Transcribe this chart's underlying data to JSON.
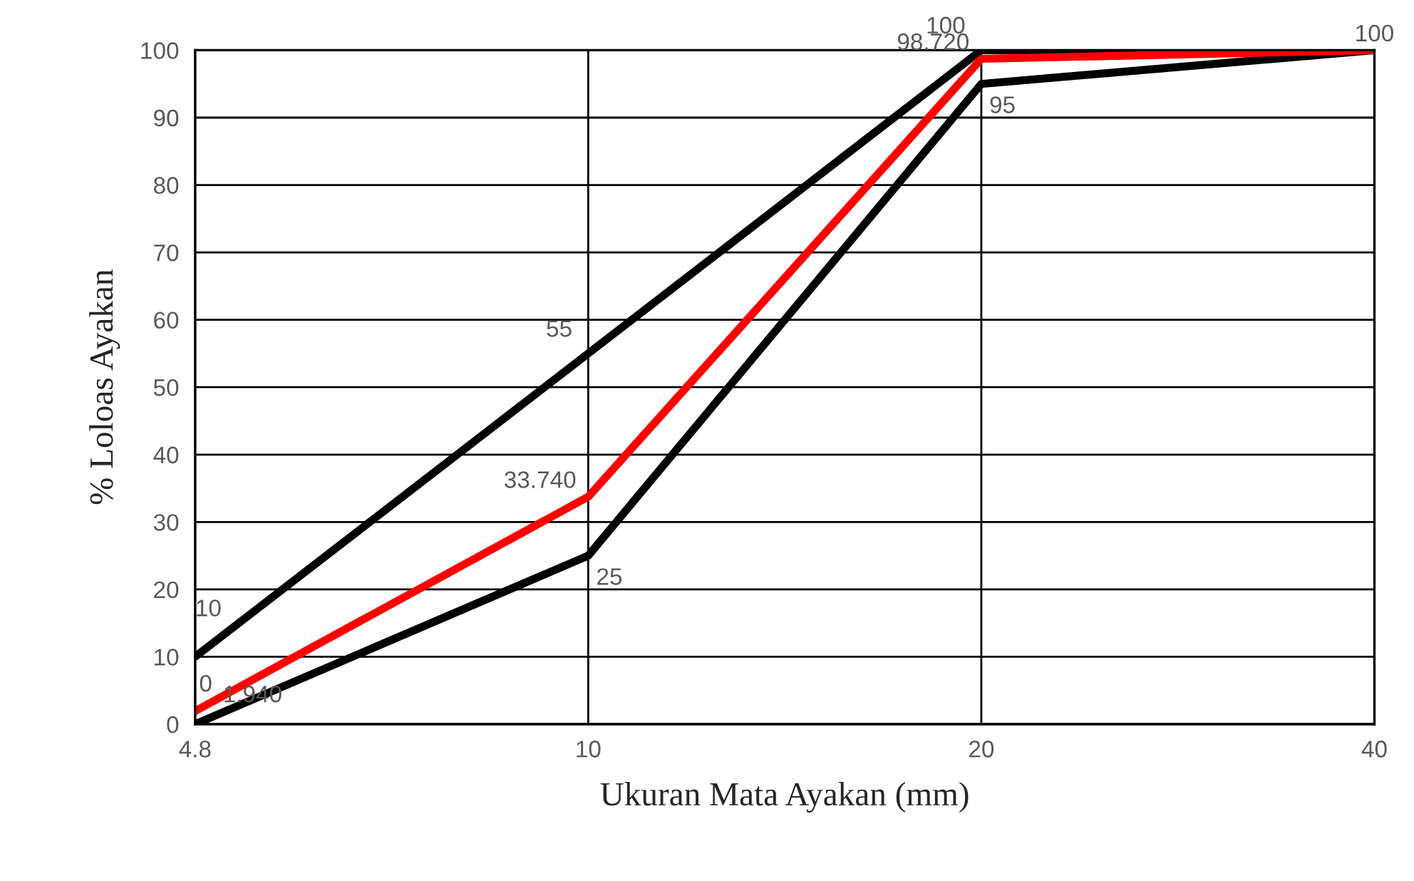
{
  "chart_data": {
    "type": "line",
    "xlabel": "Ukuran Mata Ayakan (mm)",
    "ylabel": "% Loloas Ayakan",
    "categories": [
      "4.8",
      "10",
      "20",
      "40"
    ],
    "series": [
      {
        "color": "#000000",
        "values": [
          10,
          55,
          100,
          100
        ],
        "value_labels": [
          "10",
          "55",
          "100",
          "100"
        ]
      },
      {
        "color": "#000000",
        "values": [
          0,
          25,
          95,
          100
        ],
        "value_labels": [
          "0",
          "25",
          "95",
          null
        ]
      },
      {
        "color": "#ff0000",
        "values": [
          1.94,
          33.74,
          98.72,
          100
        ],
        "value_labels": [
          "1.940",
          "33.740",
          "98.720",
          null
        ]
      }
    ],
    "ylim": [
      0,
      100
    ],
    "yticks": [
      0,
      10,
      20,
      30,
      40,
      50,
      60,
      70,
      80,
      90,
      100
    ],
    "grid": true,
    "legend": false,
    "marker": "none",
    "line_style": "solid"
  }
}
